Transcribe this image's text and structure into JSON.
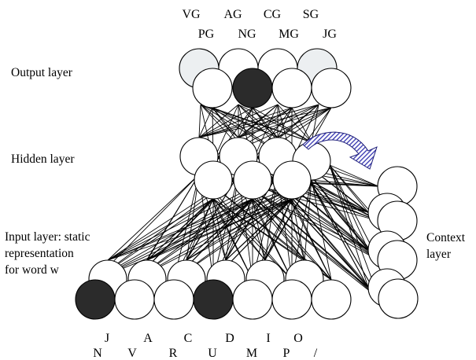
{
  "labels": {
    "output_layer": "Output layer",
    "hidden_layer": "Hidden layer",
    "input_layer": [
      "Input layer: static",
      "representation",
      "for word w"
    ],
    "context_layer": [
      "Context",
      "layer"
    ]
  },
  "output_symbols": {
    "back_row": [
      "VG",
      "AG",
      "CG",
      "SG"
    ],
    "front_row": [
      "PG",
      "NG",
      "MG",
      "JG"
    ]
  },
  "input_symbols": {
    "back_row": [
      "J",
      "A",
      "C",
      "D",
      "I",
      "O"
    ],
    "front_row": [
      "N",
      "V",
      "R",
      "U",
      "M",
      "P",
      "/"
    ]
  },
  "colors": {
    "active_unit": "#2b2b2b",
    "shaded_unit": "#eceff1",
    "unit": "#ffffff",
    "recurrent_arrow": "#3434b0"
  }
}
